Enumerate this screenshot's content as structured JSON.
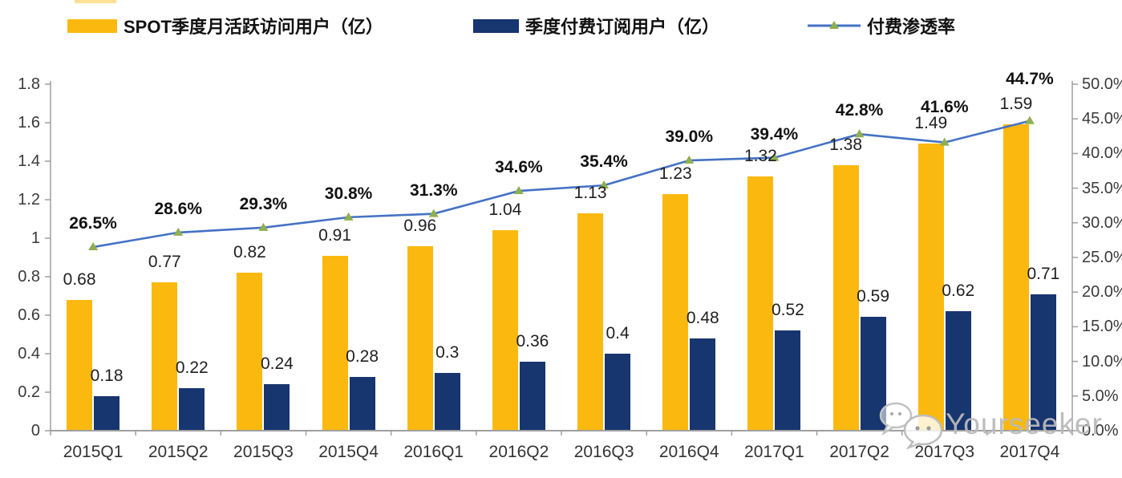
{
  "page": {
    "background": "#ffffff"
  },
  "watermark": {
    "text": "Yourseeker",
    "icon": "wechat-icon",
    "color": "#bdbdbd"
  },
  "chart_data": {
    "type": "bar",
    "title": "",
    "categories": [
      "2015Q1",
      "2015Q2",
      "2015Q3",
      "2015Q4",
      "2016Q1",
      "2016Q2",
      "2016Q3",
      "2016Q4",
      "2017Q1",
      "2017Q2",
      "2017Q3",
      "2017Q4"
    ],
    "series": [
      {
        "name": "SPOT季度月活跃访问用户（亿）",
        "type": "bar",
        "axis": "left",
        "color": "#FBB90F",
        "values": [
          0.68,
          0.77,
          0.82,
          0.91,
          0.96,
          1.04,
          1.13,
          1.23,
          1.32,
          1.38,
          1.49,
          1.59
        ],
        "labels": [
          "0.68",
          "0.77",
          "0.82",
          "0.91",
          "0.96",
          "1.04",
          "1.13",
          "1.23",
          "1.32",
          "1.38",
          "1.49",
          "1.59"
        ]
      },
      {
        "name": "季度付费订阅用户（亿）",
        "type": "bar",
        "axis": "left",
        "color": "#17356F",
        "values": [
          0.18,
          0.22,
          0.24,
          0.28,
          0.3,
          0.36,
          0.4,
          0.48,
          0.52,
          0.59,
          0.62,
          0.71
        ],
        "labels": [
          "0.18",
          "0.22",
          "0.24",
          "0.28",
          "0.3",
          "0.36",
          "0.4",
          "0.48",
          "0.52",
          "0.59",
          "0.62",
          "0.71"
        ]
      },
      {
        "name": "付费渗透率",
        "type": "line",
        "axis": "right",
        "color": "#4472C4",
        "marker": "triangle",
        "marker_color": "#8FAF50",
        "values": [
          26.5,
          28.6,
          29.3,
          30.8,
          31.3,
          34.6,
          35.4,
          39.0,
          39.4,
          42.8,
          41.6,
          44.7
        ],
        "labels": [
          "26.5%",
          "28.6%",
          "29.3%",
          "30.8%",
          "31.3%",
          "34.6%",
          "35.4%",
          "39.0%",
          "39.4%",
          "42.8%",
          "41.6%",
          "44.7%"
        ],
        "label_dy": [
          29,
          29,
          29,
          29,
          29,
          29,
          29,
          29,
          29,
          29,
          44,
          52
        ]
      }
    ],
    "left_axis": {
      "min": 0,
      "max": 1.8,
      "step": 0.2,
      "tick_labels": [
        "1.8",
        "1.6",
        "1.4",
        "1.2",
        "1",
        "0.8",
        "0.6",
        "0.4",
        "0.2",
        "0"
      ]
    },
    "right_axis": {
      "min": 0,
      "max": 50,
      "step": 5,
      "tick_labels": [
        "50.0%",
        "45.0%",
        "40.0%",
        "35.0%",
        "30.0%",
        "25.0%",
        "20.0%",
        "15.0%",
        "10.0%",
        "5.0%",
        "0.0%"
      ]
    },
    "grid": false,
    "legend_position": "top",
    "axis_color": "#9f9f9f"
  }
}
